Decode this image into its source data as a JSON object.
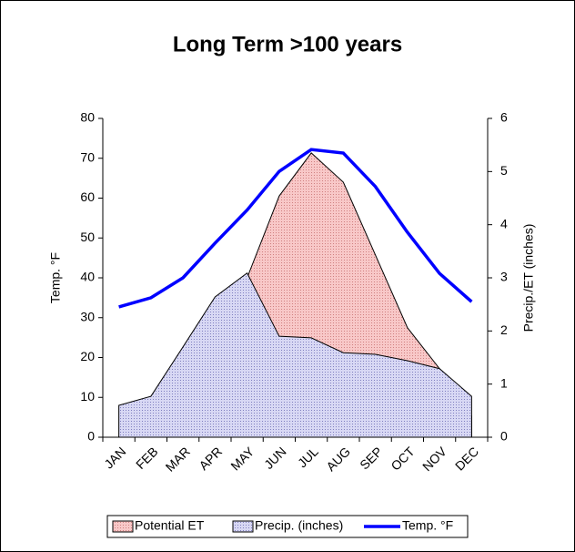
{
  "chart_data": {
    "type": "combo",
    "title": "Long Term >100 years",
    "categories": [
      "JAN",
      "FEB",
      "MAR",
      "APR",
      "MAY",
      "JUN",
      "JUL",
      "AUG",
      "SEP",
      "OCT",
      "NOV",
      "DEC"
    ],
    "y_label": "Temp. °F",
    "y2_label": "Precip./ET (inches)",
    "ylim": [
      0,
      80
    ],
    "yticks": [
      0,
      10,
      20,
      30,
      40,
      50,
      60,
      70,
      80
    ],
    "y2lim": [
      0,
      6
    ],
    "y2ticks": [
      0,
      1,
      2,
      3,
      4,
      5,
      6
    ],
    "series": [
      {
        "name": "Potential ET",
        "type": "area",
        "axis": "y2",
        "color": "#f4b4b4",
        "values": [
          0,
          0.1,
          0.5,
          1.5,
          3.0,
          4.54,
          5.35,
          4.8,
          3.43,
          2.06,
          1.29,
          0.4
        ]
      },
      {
        "name": "Precip. (inches)",
        "type": "area",
        "axis": "y2",
        "color": "#c4c4ec",
        "values": [
          0.6,
          0.77,
          1.7,
          2.64,
          3.09,
          1.9,
          1.87,
          1.59,
          1.56,
          1.44,
          1.29,
          0.77
        ]
      },
      {
        "name": "Temp. °F",
        "type": "line",
        "axis": "y",
        "color": "#0000ff",
        "values": [
          32.7,
          35,
          40,
          48.7,
          57,
          66.7,
          72.2,
          71.3,
          62.9,
          51.4,
          41.1,
          34
        ]
      }
    ]
  }
}
